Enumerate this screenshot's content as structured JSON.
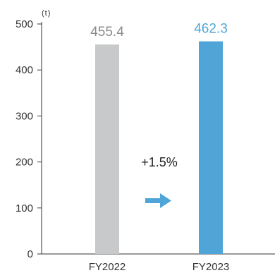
{
  "chart_data": {
    "type": "bar",
    "unit": "(t)",
    "categories": [
      "FY2022",
      "FY2023"
    ],
    "values": [
      455.4,
      462.3
    ],
    "value_labels": [
      "455.4",
      "462.3"
    ],
    "colors": [
      "#c8c9ca",
      "#4fa5d7"
    ],
    "label_colors": [
      "#8b8b8b",
      "#4fa5d7"
    ],
    "ylim": [
      0,
      500
    ],
    "yticks": [
      0,
      100,
      200,
      300,
      400,
      500
    ],
    "grid": false,
    "legend": "none",
    "annotation": {
      "text": "+1.5%",
      "arrow_color": "#4fa5d7"
    }
  }
}
